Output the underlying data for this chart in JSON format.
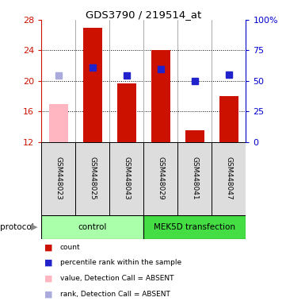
{
  "title": "GDS3790 / 219514_at",
  "samples": [
    "GSM448023",
    "GSM448025",
    "GSM448043",
    "GSM448029",
    "GSM448041",
    "GSM448047"
  ],
  "bar_values": [
    17.0,
    27.0,
    19.7,
    24.0,
    13.5,
    18.0
  ],
  "bar_colors": [
    "#ffb6c1",
    "#cc1100",
    "#cc1100",
    "#cc1100",
    "#cc1100",
    "#cc1100"
  ],
  "rank_values": [
    20.7,
    21.7,
    20.7,
    21.5,
    20.0,
    20.8
  ],
  "rank_colors": [
    "#aaaadd",
    "#2222cc",
    "#2222cc",
    "#2222cc",
    "#2222cc",
    "#2222cc"
  ],
  "absent_flags": [
    true,
    false,
    false,
    false,
    false,
    false
  ],
  "ylim_left": [
    12,
    28
  ],
  "ylim_right": [
    0,
    100
  ],
  "yticks_left": [
    12,
    16,
    20,
    24,
    28
  ],
  "ytick_labels_right": [
    "0",
    "25",
    "50",
    "75",
    "100%"
  ],
  "protocol_groups": [
    {
      "label": "control",
      "indices": [
        0,
        1,
        2
      ],
      "color": "#aaffaa"
    },
    {
      "label": "MEK5D transfection",
      "indices": [
        3,
        4,
        5
      ],
      "color": "#44dd44"
    }
  ],
  "legend_colors": [
    "#cc1100",
    "#2222cc",
    "#ffb6c1",
    "#aaaadd"
  ],
  "legend_labels": [
    "count",
    "percentile rank within the sample",
    "value, Detection Call = ABSENT",
    "rank, Detection Call = ABSENT"
  ],
  "protocol_label": "protocol",
  "bar_width": 0.55,
  "rank_marker_size": 6,
  "background_color": "#ffffff",
  "left_axis_color": "#cc1100",
  "right_axis_color": "#0000cc",
  "cell_color": "#dddddd",
  "grid_dotted_at": [
    16,
    20,
    24
  ]
}
